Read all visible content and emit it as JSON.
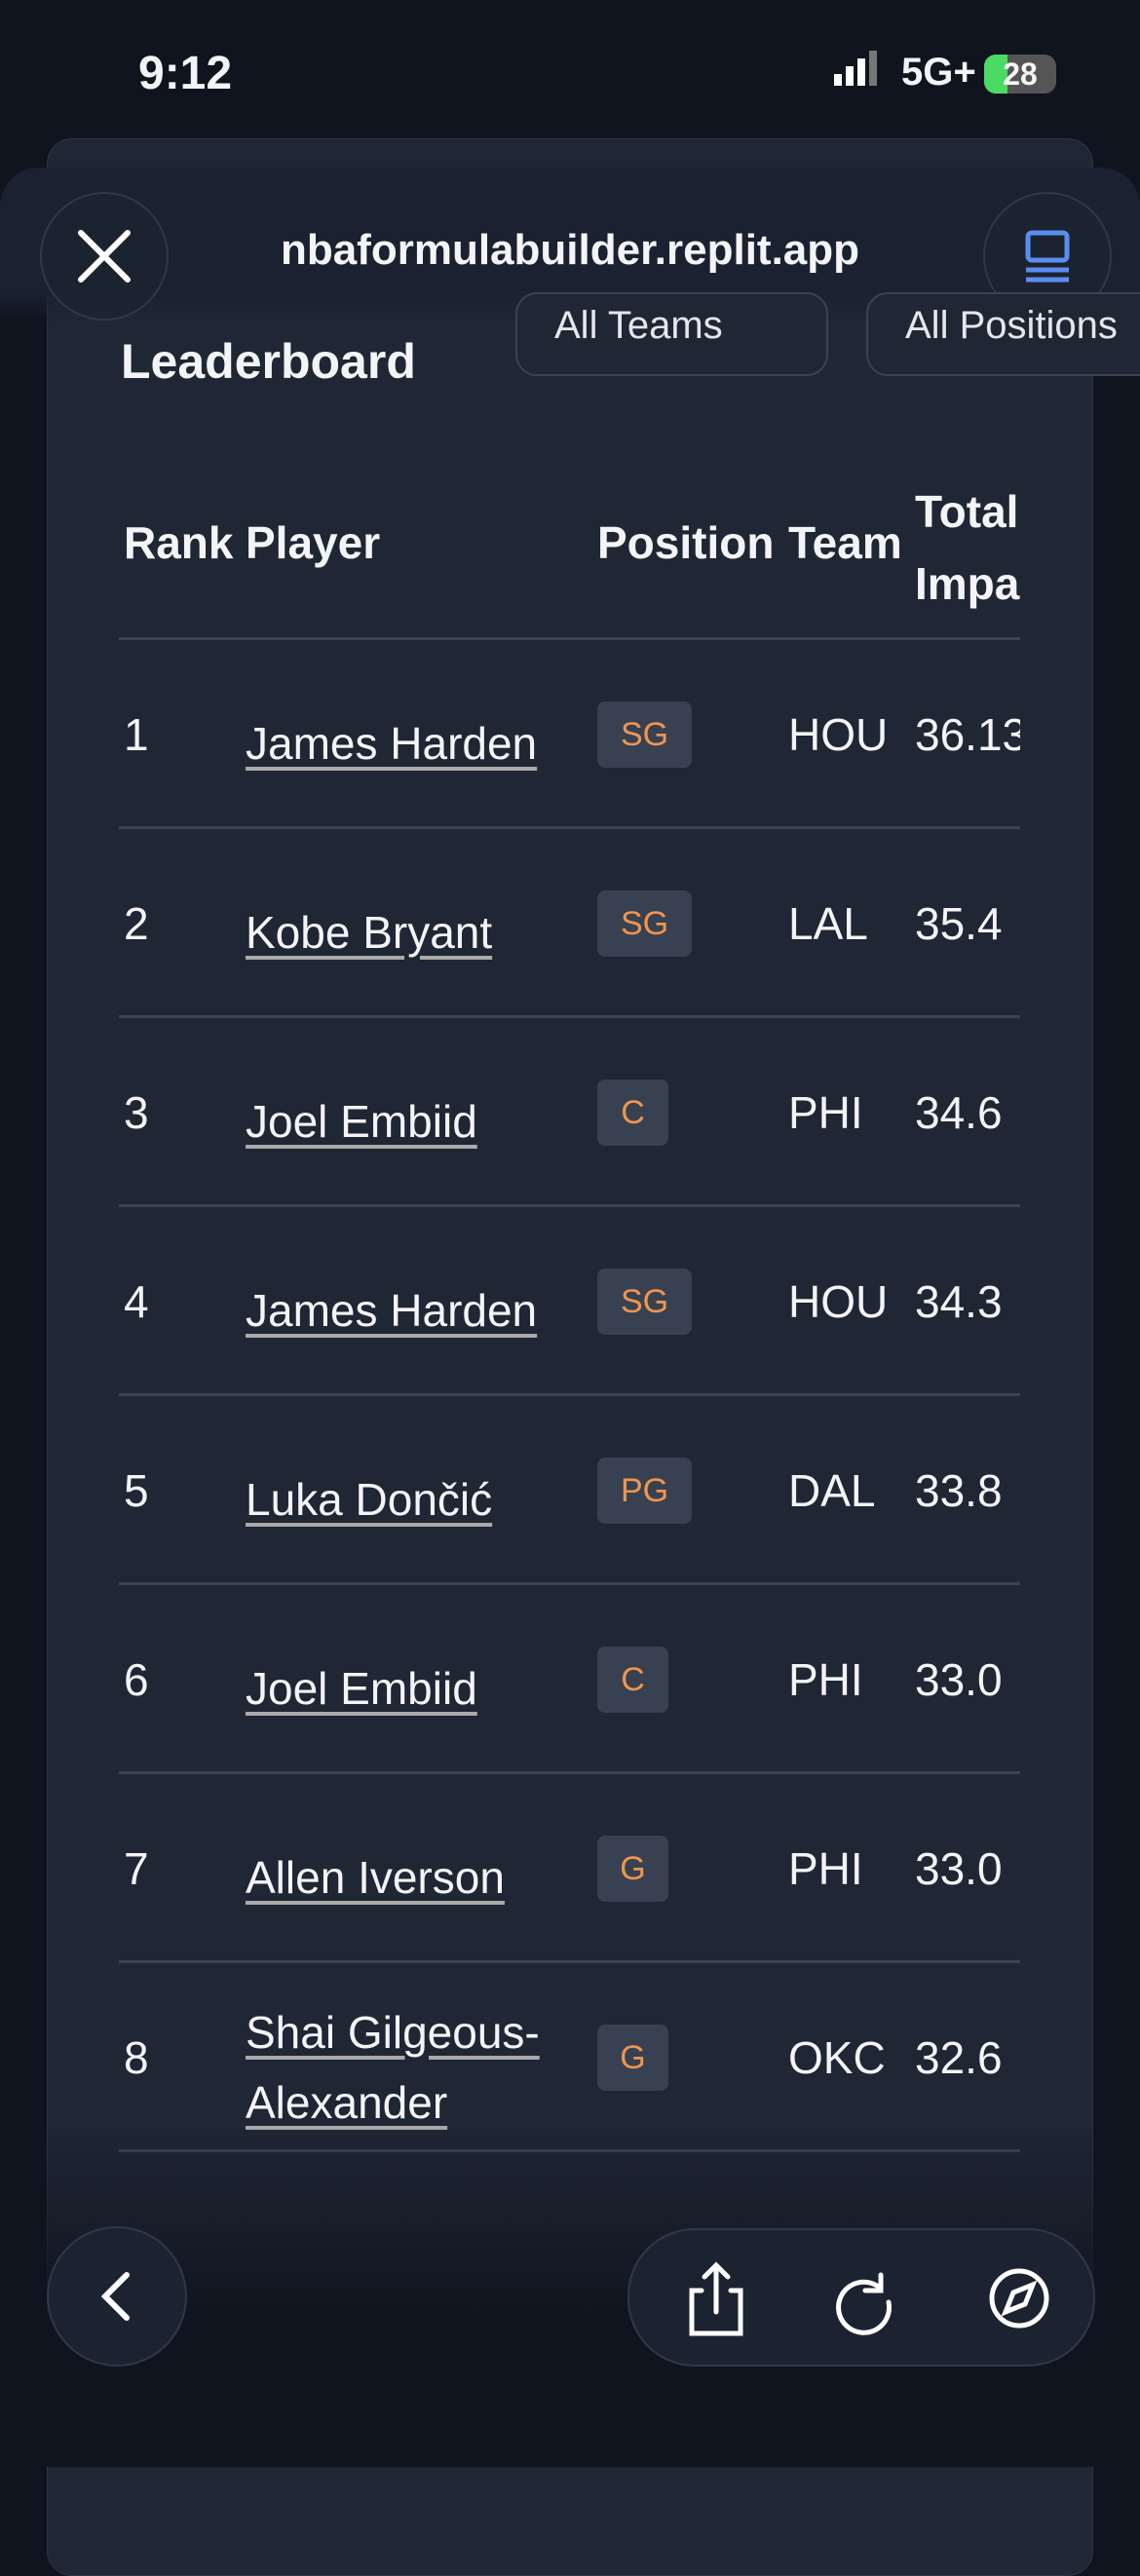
{
  "status": {
    "time": "9:12",
    "network": "5G+",
    "battery": "28"
  },
  "browser": {
    "url": "nbaformulabuilder.replit.app"
  },
  "leaderboard": {
    "title": "Leaderboard",
    "filters": [
      "All Teams",
      "All Positions"
    ],
    "headers": [
      "Rank",
      "Player",
      "Position",
      "Team",
      "Total Impa"
    ],
    "rows": [
      [
        "1",
        "James Harden",
        "SG",
        "HOU",
        "36.13"
      ],
      [
        "2",
        "Kobe Bryant",
        "SG",
        "LAL",
        "35.4"
      ],
      [
        "3",
        "Joel Embiid",
        "C",
        "PHI",
        "34.6"
      ],
      [
        "4",
        "James Harden",
        "SG",
        "HOU",
        "34.3"
      ],
      [
        "5",
        "Luka Dončić",
        "PG",
        "DAL",
        "33.8"
      ],
      [
        "6",
        "Joel Embiid",
        "C",
        "PHI",
        "33.0"
      ],
      [
        "7",
        "Allen Iverson",
        "G",
        "PHI",
        "33.0"
      ],
      [
        "8",
        "Shai Gilgeous-Alexander",
        "G",
        "OKC",
        "32.6"
      ]
    ]
  }
}
